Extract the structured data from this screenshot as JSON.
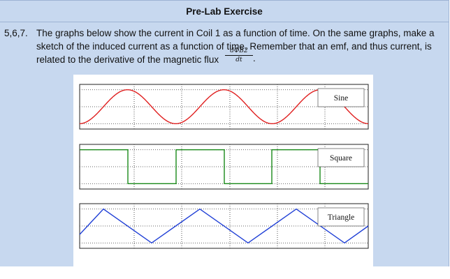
{
  "header": {
    "title": "Pre-Lab Exercise"
  },
  "exercise": {
    "number": "5,6,7.",
    "line1": "The graphs below show the current in Coil 1 as a function of time. On the same graphs, make a",
    "line2": "sketch of the induced current as a function of time. Remember that an emf, and thus current, is",
    "line3": "related to the derivative of the magnetic flux",
    "fraction_numerator": "dΦB2",
    "fraction_denominator": "dt",
    "trailing": "."
  },
  "graphs": [
    {
      "label": "Sine",
      "waveform": "sine",
      "color": "#e02020"
    },
    {
      "label": "Square",
      "waveform": "square",
      "color": "#1a8a1a"
    },
    {
      "label": "Triangle",
      "waveform": "triangle",
      "color": "#1f3fd6"
    }
  ],
  "chart_data": [
    {
      "type": "line",
      "series": [
        {
          "values": "sine wave, 3 periods"
        }
      ]
    },
    {
      "type": "line",
      "series": [
        {
          "values": "square wave, 3 periods"
        }
      ]
    },
    {
      "type": "line",
      "series": [
        {
          "values": "triangle wave, 3 periods"
        }
      ]
    }
  ]
}
